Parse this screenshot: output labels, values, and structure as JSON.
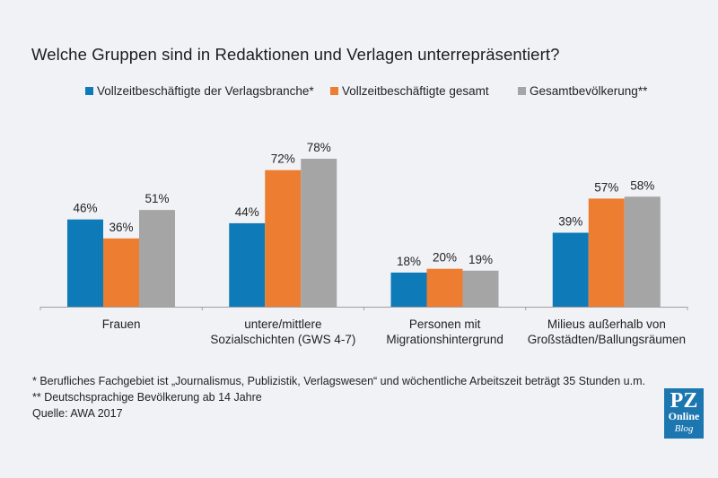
{
  "chart_data": {
    "type": "bar",
    "title": "Welche Gruppen sind in Redaktionen und Verlagen unterrepräsentiert?",
    "xlabel": "",
    "ylabel": "",
    "ylim": [
      0,
      80
    ],
    "grid": false,
    "legend_position": "top-center",
    "categories": [
      [
        "Frauen"
      ],
      [
        "untere/mittlere",
        "Sozialschichten (GWS 4-7)"
      ],
      [
        "Personen mit",
        "Migrationshintergrund"
      ],
      [
        "Milieus außerhalb von",
        "Großstädten/Ballungsräumen"
      ]
    ],
    "series": [
      {
        "name": "Vollzeitbeschäftigte der Verlagsbranche*",
        "color": "#0f7ab8",
        "values": [
          46,
          44,
          18,
          39
        ]
      },
      {
        "name": "Vollzeitbeschäftigte gesamt",
        "color": "#ed7d31",
        "values": [
          36,
          72,
          20,
          57
        ]
      },
      {
        "name": "Gesamtbevölkerung**",
        "color": "#a5a5a5",
        "values": [
          51,
          78,
          19,
          58
        ]
      }
    ],
    "value_suffix": "%"
  },
  "footnotes": [
    "*   Berufliches Fachgebiet ist „Journalismus, Publizistik, Verlagswesen“ und wöchentliche Arbeitszeit beträgt 35 Stunden u.m.",
    "** Deutschsprachige Bevölkerung ab 14 Jahre",
    "Quelle: AWA 2017"
  ],
  "logo": {
    "line1": "PZ",
    "line2": "Online",
    "line3": "Blog",
    "color": "#1c77b0"
  }
}
